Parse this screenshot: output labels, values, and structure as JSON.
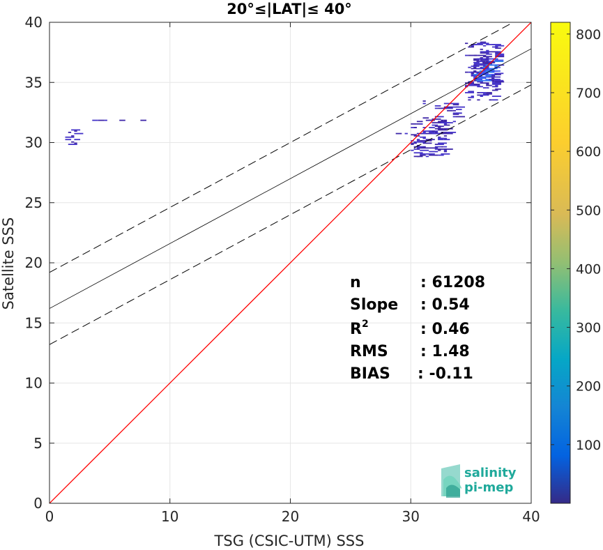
{
  "chart_data": {
    "type": "scatter",
    "title": "20°≤|LAT|≤ 40°",
    "xlabel": "TSG (CSIC-UTM) SSS",
    "ylabel": "Satellite SSS",
    "xlim": [
      0,
      40
    ],
    "ylim": [
      0,
      40
    ],
    "xticks": [
      "0",
      "10",
      "20",
      "30",
      "40"
    ],
    "yticks": [
      "0",
      "5",
      "10",
      "15",
      "20",
      "25",
      "30",
      "35",
      "40"
    ],
    "grid": true,
    "colorbar": {
      "range": [
        0,
        820
      ],
      "ticks": [
        "100",
        "200",
        "300",
        "400",
        "500",
        "600",
        "700",
        "800"
      ],
      "colormap": "parula"
    },
    "lines": {
      "identity": {
        "slope": 1,
        "intercept": 0,
        "color": "#ff0000"
      },
      "fit": {
        "slope": 0.54,
        "intercept": 16.2,
        "color": "#000000"
      },
      "upper_band": {
        "slope": 0.54,
        "intercept": 19.2
      },
      "lower_band": {
        "slope": 0.54,
        "intercept": 13.2
      }
    },
    "stats": [
      {
        "label": "n",
        "value": ": 61208"
      },
      {
        "label": "Slope",
        "value": ": 0.54"
      },
      {
        "label": "R",
        "sup": "2",
        "value": ": 0.46"
      },
      {
        "label": "RMS",
        "value": ": 1.48"
      },
      {
        "label": "BIAS",
        "value": ": -0.11"
      }
    ],
    "clusters": [
      {
        "x": [
          34.5,
          37.2
        ],
        "y": [
          33.5,
          38.4
        ],
        "density": 0.22
      },
      {
        "x": [
          35.2,
          37.0
        ],
        "y": [
          35.0,
          37.0
        ],
        "density": 0.5
      },
      {
        "x": [
          30.0,
          33.0
        ],
        "y": [
          28.8,
          31.8
        ],
        "density": 0.25
      },
      {
        "x": [
          26.5,
          33.5
        ],
        "y": [
          30.7,
          30.9
        ],
        "density": 0.15
      },
      {
        "x": [
          31.0,
          34.0
        ],
        "y": [
          31.5,
          33.5
        ],
        "density": 0.12
      },
      {
        "x": [
          1.3,
          8.0
        ],
        "y": [
          31.8,
          31.9
        ],
        "density": 0.18
      },
      {
        "x": [
          1.3,
          2.2
        ],
        "y": [
          29.8,
          31.2
        ],
        "density": 0.2
      }
    ]
  },
  "logo": {
    "line1": "salinity",
    "line2": "pi-mep"
  }
}
